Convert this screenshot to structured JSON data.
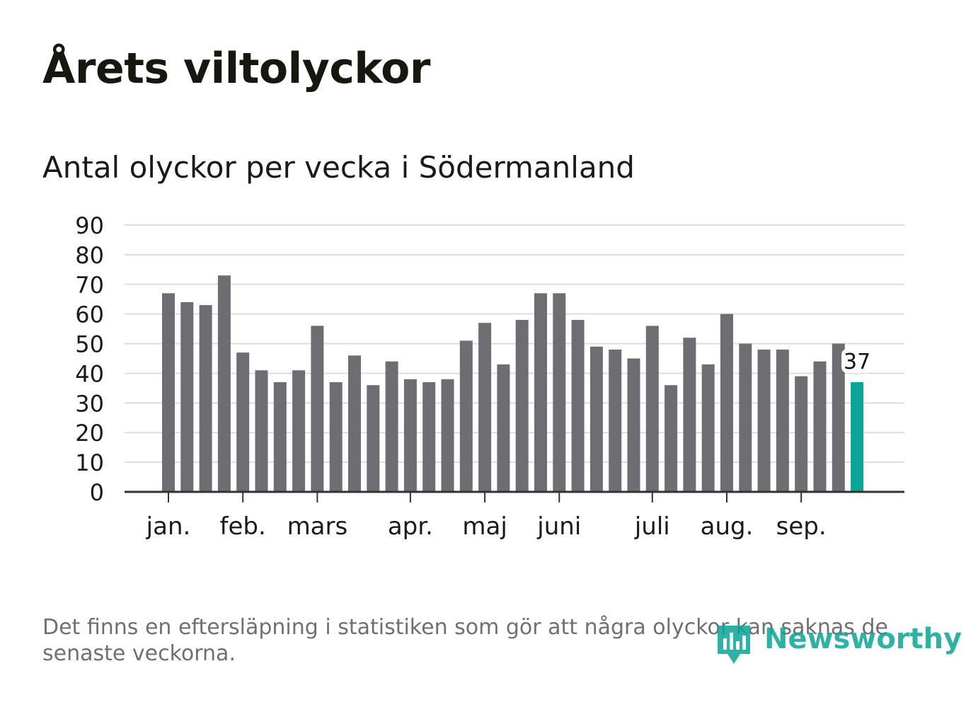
{
  "title": "Årets viltolyckor",
  "subtitle": "Antal olyckor per vecka i Södermanland",
  "note": "Det finns en eftersläpning i statistiken som gör att några olyckor kan saknas de senaste veckorna.",
  "brand": {
    "name": "Newsworthy",
    "icon": "newsworthy-logo-icon"
  },
  "colors": {
    "bar": "#6e6d72",
    "highlight": "#0aa595",
    "grid": "#dddddd",
    "axis": "#333333",
    "text": "#1a1a1a",
    "note": "#707070"
  },
  "chart_data": {
    "type": "bar",
    "title": "Antal olyckor per vecka i Södermanland",
    "xlabel": "",
    "ylabel": "",
    "ylim": [
      0,
      90
    ],
    "yticks": [
      0,
      10,
      20,
      30,
      40,
      50,
      60,
      70,
      80,
      90
    ],
    "grid": true,
    "weeks": [
      1,
      2,
      3,
      4,
      5,
      6,
      7,
      8,
      9,
      10,
      11,
      12,
      13,
      14,
      15,
      16,
      17,
      18,
      19,
      20,
      21,
      22,
      23,
      24,
      25,
      26,
      27,
      28,
      29,
      30,
      31,
      32,
      33,
      34,
      35,
      36,
      37,
      38
    ],
    "values": [
      67,
      64,
      63,
      73,
      47,
      41,
      37,
      41,
      56,
      37,
      46,
      36,
      44,
      38,
      37,
      38,
      51,
      57,
      43,
      58,
      67,
      67,
      58,
      49,
      48,
      45,
      56,
      36,
      52,
      43,
      60,
      50,
      48,
      48,
      39,
      44,
      50,
      37
    ],
    "highlight_index": 37,
    "highlight_label": "37",
    "month_ticks": [
      {
        "label": "jan.",
        "week": 1
      },
      {
        "label": "feb.",
        "week": 5
      },
      {
        "label": "mars",
        "week": 9
      },
      {
        "label": "apr.",
        "week": 14
      },
      {
        "label": "maj",
        "week": 18
      },
      {
        "label": "juni",
        "week": 22
      },
      {
        "label": "juli",
        "week": 27
      },
      {
        "label": "aug.",
        "week": 31
      },
      {
        "label": "sep.",
        "week": 35
      }
    ]
  }
}
